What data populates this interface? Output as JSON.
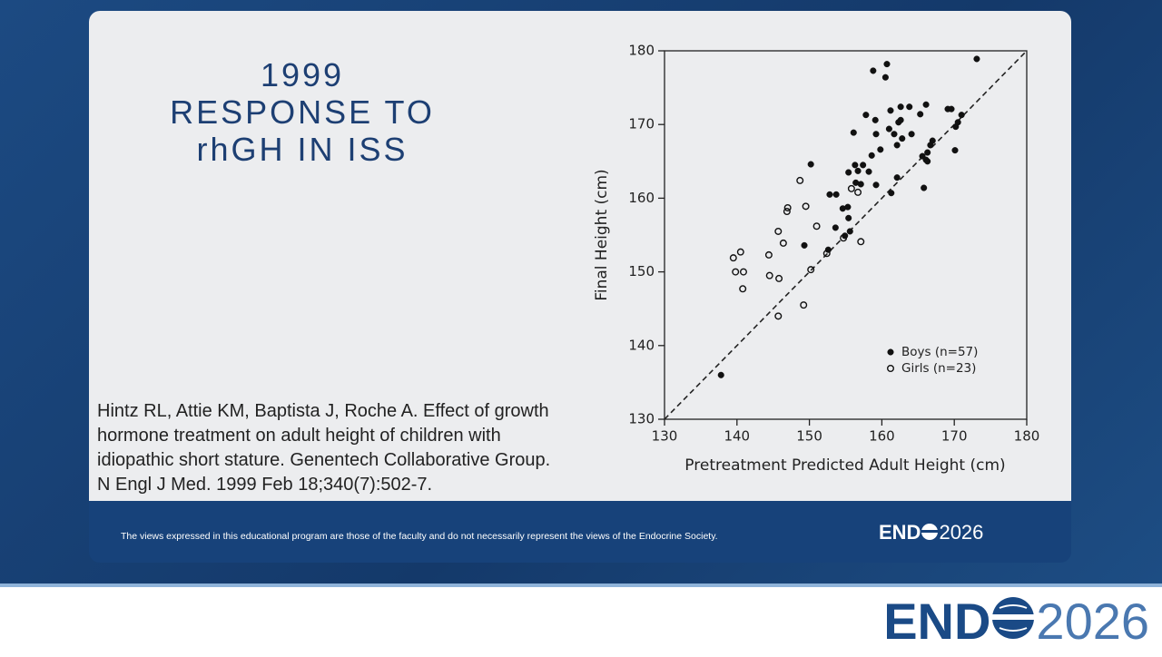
{
  "slide_title": [
    "1999",
    "RESPONSE TO",
    "rhGH IN ISS"
  ],
  "citation": [
    "Hintz RL, Attie KM, Baptista J, Roche A. Effect of growth",
    "hormone treatment on adult height of children with",
    "idiopathic short stature. Genentech Collaborative Group.",
    "N Engl J Med. 1999 Feb 18;340(7):502-7."
  ],
  "disclaimer": "The views expressed in this educational program are those of the faculty and do not necessarily represent the views of the Endocrine Society.",
  "logo": {
    "prefix": "END",
    "year": "2026"
  },
  "chart_data": {
    "type": "scatter",
    "x_label": "Pretreatment Predicted Adult Height (cm)",
    "y_label": "Final Height (cm)",
    "xlim": [
      130,
      180
    ],
    "ylim": [
      130,
      180
    ],
    "xticks": [
      130,
      140,
      150,
      160,
      170,
      180
    ],
    "yticks": [
      130,
      140,
      150,
      160,
      170,
      180
    ],
    "legend": "lower right",
    "series": [
      {
        "name": "Boys (n=57)",
        "color": "#111111",
        "marker": "filled",
        "x": [
          137.8,
          149.3,
          150.2,
          152.6,
          152.8,
          153.7,
          153.6,
          154.6,
          154.9,
          155.3,
          155.4,
          155.6,
          155.4,
          156.1,
          156.3,
          156.4,
          156.7,
          157.1,
          157.4,
          157.8,
          158.2,
          158.6,
          158.8,
          159.1,
          159.2,
          159.2,
          159.8,
          160.5,
          160.7,
          161.0,
          161.2,
          161.3,
          161.7,
          162.1,
          162.1,
          162.3,
          162.6,
          162.8,
          162.6,
          163.8,
          164.1,
          165.3,
          165.8,
          165.6,
          166.1,
          166.1,
          166.3,
          166.7,
          167.0,
          169.1,
          169.6,
          170.1,
          170.2,
          170.5,
          171.0,
          173.1,
          166.3
        ],
        "values": [
          136.0,
          153.6,
          164.6,
          153.0,
          160.5,
          160.5,
          156.0,
          158.6,
          154.9,
          158.8,
          157.3,
          155.5,
          163.5,
          168.9,
          164.5,
          162.1,
          163.7,
          161.9,
          164.5,
          171.3,
          163.6,
          165.8,
          177.3,
          170.6,
          168.7,
          161.8,
          166.6,
          176.4,
          178.2,
          169.4,
          171.9,
          160.7,
          168.7,
          162.8,
          167.2,
          170.3,
          172.4,
          168.1,
          170.6,
          172.4,
          168.7,
          171.4,
          161.4,
          165.7,
          172.7,
          165.2,
          166.2,
          167.2,
          167.8,
          172.1,
          172.1,
          166.5,
          169.7,
          170.3,
          171.3,
          178.9,
          165.0
        ]
      },
      {
        "name": "Girls (n=23)",
        "color": "#111111",
        "marker": "open",
        "x": [
          139.5,
          139.8,
          140.5,
          140.9,
          140.8,
          144.4,
          144.5,
          145.7,
          145.7,
          145.8,
          146.4,
          146.9,
          147.0,
          148.7,
          149.2,
          149.5,
          150.2,
          151.0,
          152.4,
          154.7,
          155.8,
          156.7,
          157.1
        ],
        "values": [
          151.9,
          150.0,
          152.7,
          150.0,
          147.7,
          152.3,
          149.5,
          144.0,
          155.5,
          149.1,
          153.9,
          158.2,
          158.7,
          162.4,
          145.5,
          158.9,
          150.3,
          156.2,
          152.5,
          154.6,
          161.3,
          160.8,
          154.1
        ]
      }
    ]
  }
}
